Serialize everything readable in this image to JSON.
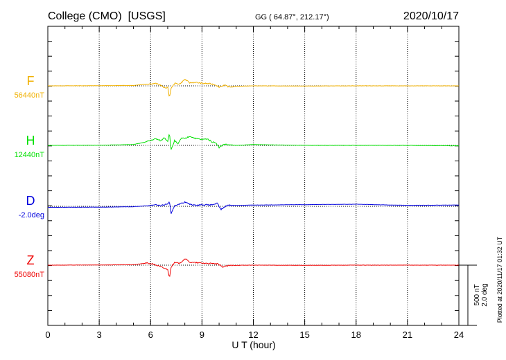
{
  "header": {
    "station": "College (CMO)  [USGS]",
    "coords": "GG ( 64.87°, 212.17°)",
    "date": "2020/10/17"
  },
  "side_note": "Plotted at 2020/11/17 01:32 UT",
  "chart_data": {
    "type": "line",
    "xlabel": "U T (hour)",
    "xlim": [
      0,
      24
    ],
    "xticks": [
      "0",
      "3",
      "6",
      "9",
      "12",
      "15",
      "18",
      "21",
      "24"
    ],
    "scale_labels": [
      "500 nT",
      "2.0 deg"
    ],
    "series": [
      {
        "name": "F",
        "baseline": "56440nT",
        "color": "#f0b000",
        "x": [
          0,
          3,
          5,
          5.8,
          6.3,
          6.6,
          6.8,
          7.0,
          7.1,
          7.2,
          7.4,
          7.7,
          8.0,
          8.3,
          8.6,
          9.0,
          9.5,
          9.8,
          10.0,
          10.3,
          10.6,
          11,
          12,
          15,
          18,
          21,
          24
        ],
        "y": [
          0,
          2,
          5,
          22,
          28,
          8,
          -25,
          -18,
          -140,
          -32,
          30,
          22,
          78,
          35,
          42,
          30,
          25,
          12,
          -14,
          8,
          -14,
          -5,
          0,
          -2,
          0,
          0,
          0
        ]
      },
      {
        "name": "H",
        "baseline": "12440nT",
        "color": "#00e000",
        "x": [
          0,
          3,
          5,
          5.7,
          6.0,
          6.3,
          6.6,
          6.8,
          7.0,
          7.1,
          7.2,
          7.4,
          7.6,
          7.8,
          8.0,
          8.3,
          8.6,
          9.0,
          9.3,
          9.6,
          9.8,
          10.0,
          10.3,
          10.6,
          11,
          12,
          15,
          18,
          21,
          24
        ],
        "y": [
          0,
          2,
          10,
          40,
          60,
          80,
          55,
          95,
          50,
          150,
          -55,
          60,
          15,
          90,
          80,
          110,
          85,
          70,
          80,
          40,
          35,
          -25,
          15,
          5,
          0,
          10,
          0,
          0,
          0,
          -5
        ]
      },
      {
        "name": "D",
        "baseline": "-2.0deg",
        "color": "#0000dd",
        "x": [
          0,
          3,
          5,
          6.0,
          6.3,
          6.6,
          6.8,
          7.0,
          7.1,
          7.2,
          7.4,
          7.7,
          8.0,
          8.3,
          8.6,
          9.0,
          9.5,
          9.9,
          10.1,
          10.5,
          11,
          12,
          15,
          18,
          20,
          21,
          24
        ],
        "y": [
          -12,
          -10,
          -5,
          10,
          22,
          5,
          18,
          30,
          55,
          -95,
          10,
          30,
          50,
          25,
          12,
          20,
          15,
          35,
          -40,
          15,
          10,
          15,
          20,
          25,
          15,
          12,
          15
        ]
      },
      {
        "name": "Z",
        "baseline": "55080nT",
        "color": "#ee0000",
        "x": [
          0,
          3,
          5,
          5.8,
          6.2,
          6.6,
          6.9,
          7.0,
          7.1,
          7.2,
          7.4,
          7.7,
          8.0,
          8.3,
          8.6,
          9.0,
          9.5,
          9.9,
          10.2,
          10.6,
          11,
          12,
          15,
          18,
          21,
          24
        ],
        "y": [
          0,
          2,
          5,
          25,
          10,
          -20,
          -45,
          -50,
          -155,
          -20,
          30,
          22,
          78,
          35,
          30,
          25,
          20,
          15,
          -20,
          -5,
          -2,
          0,
          -2,
          0,
          0,
          0
        ]
      }
    ]
  }
}
